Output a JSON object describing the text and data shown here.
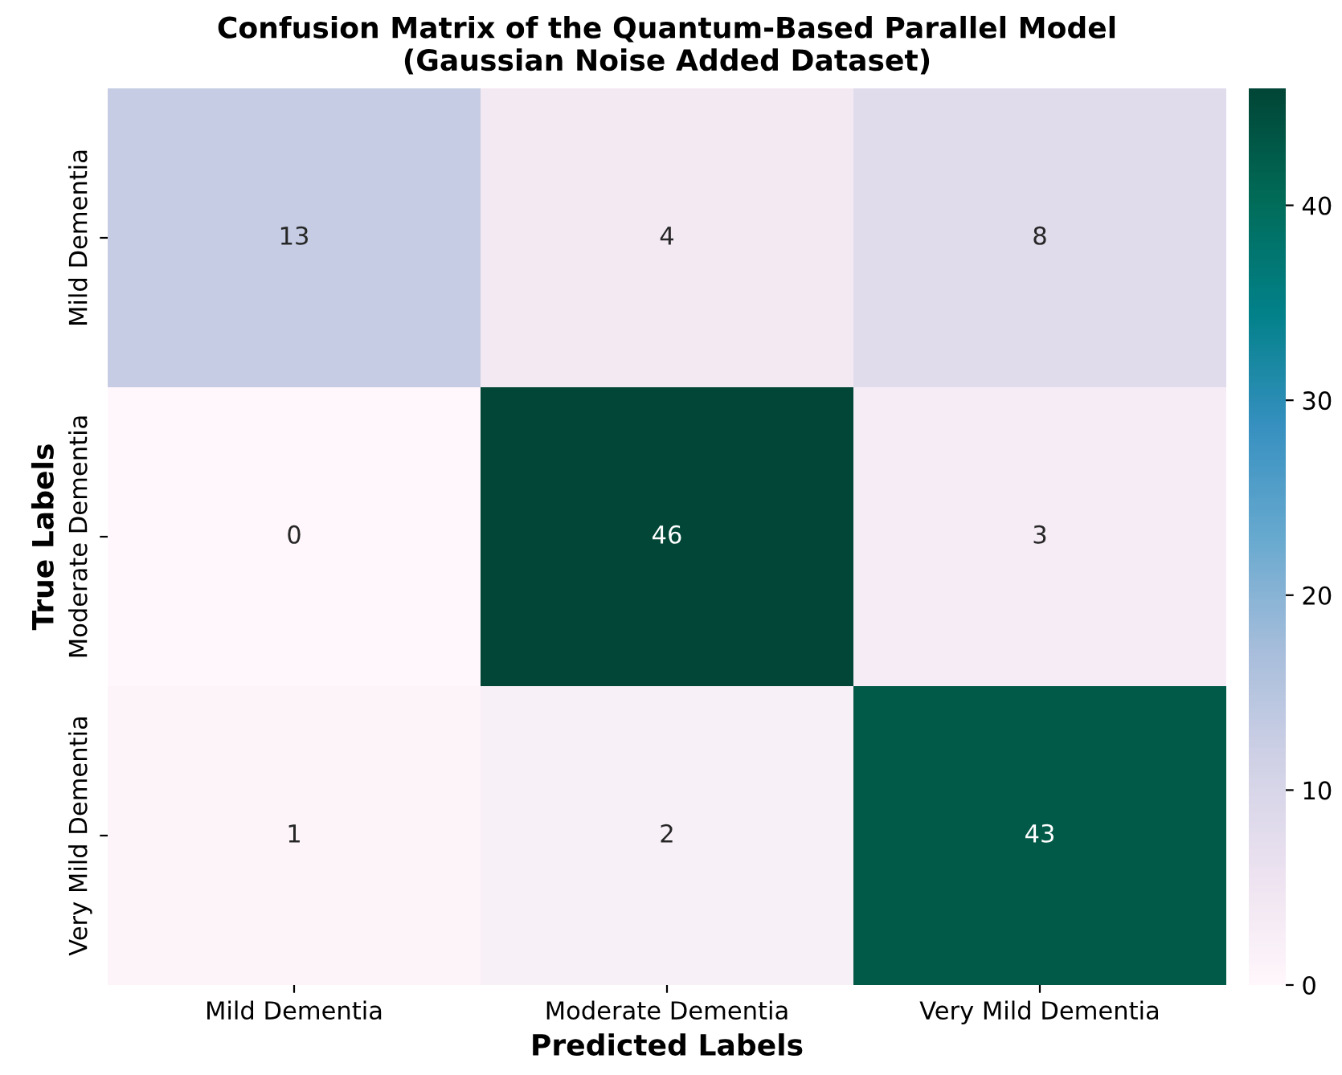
{
  "chart_data": {
    "type": "heatmap",
    "title": "Confusion Matrix of the Quantum-Based Parallel Model\n(Gaussian Noise Added Dataset)",
    "xlabel": "Predicted Labels",
    "ylabel": "True Labels",
    "categories": [
      "Mild Dementia",
      "Moderate Dementia",
      "Very Mild Dementia"
    ],
    "y_categories": [
      "Mild Dementia",
      "Moderate Dementia",
      "Very Mild Dementia"
    ],
    "cells": [
      [
        13,
        4,
        8
      ],
      [
        0,
        46,
        3
      ],
      [
        1,
        2,
        43
      ]
    ],
    "data_labels": true,
    "clim": [
      0,
      46
    ],
    "cticks": [
      0,
      10,
      20,
      30,
      40
    ]
  }
}
